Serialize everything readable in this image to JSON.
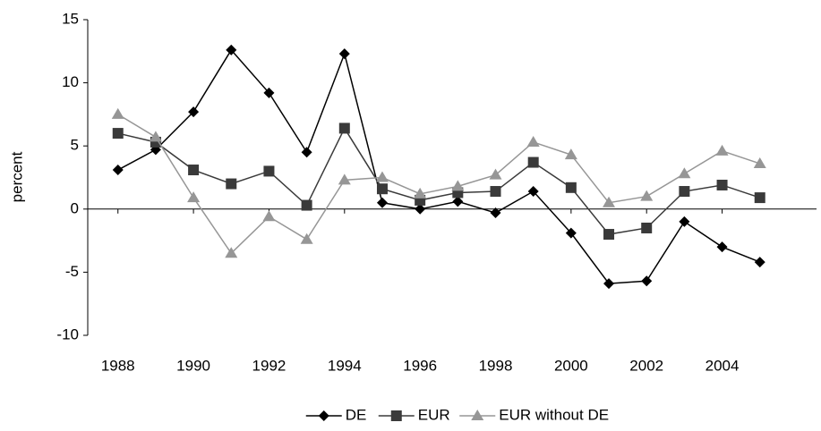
{
  "chart_data": {
    "type": "line",
    "y_label": "percent",
    "x": [
      1988,
      1989,
      1990,
      1991,
      1992,
      1993,
      1994,
      1995,
      1996,
      1997,
      1998,
      1999,
      2000,
      2001,
      2002,
      2003,
      2004,
      2005
    ],
    "series": [
      {
        "name": "DE",
        "color": "#000000",
        "marker": "diamond",
        "values": [
          3.1,
          4.7,
          7.7,
          12.6,
          9.2,
          4.5,
          12.3,
          0.5,
          0.0,
          0.6,
          -0.3,
          1.4,
          -1.9,
          -5.9,
          -5.7,
          -1.0,
          -3.0,
          -4.2
        ]
      },
      {
        "name": "EUR",
        "color": "#3a3a3a",
        "marker": "square",
        "values": [
          6.0,
          5.3,
          3.1,
          2.0,
          3.0,
          0.3,
          6.4,
          1.6,
          0.7,
          1.3,
          1.4,
          3.7,
          1.7,
          -2.0,
          -1.5,
          1.4,
          1.9,
          0.9
        ]
      },
      {
        "name": "EUR without DE",
        "color": "#969696",
        "marker": "triangle",
        "values": [
          7.5,
          5.7,
          0.9,
          -3.5,
          -0.6,
          -2.4,
          2.3,
          2.5,
          1.2,
          1.8,
          2.7,
          5.3,
          4.3,
          0.5,
          1.0,
          2.8,
          4.6,
          3.6
        ]
      }
    ],
    "xlim": [
      1987.2,
      2006.5
    ],
    "xticks": [
      1988,
      1990,
      1992,
      1994,
      1996,
      1998,
      2000,
      2002,
      2004
    ],
    "ylim": [
      -10,
      15
    ],
    "yticks": [
      -10,
      -5,
      0,
      5,
      10,
      15
    ],
    "legend": "bottom"
  }
}
